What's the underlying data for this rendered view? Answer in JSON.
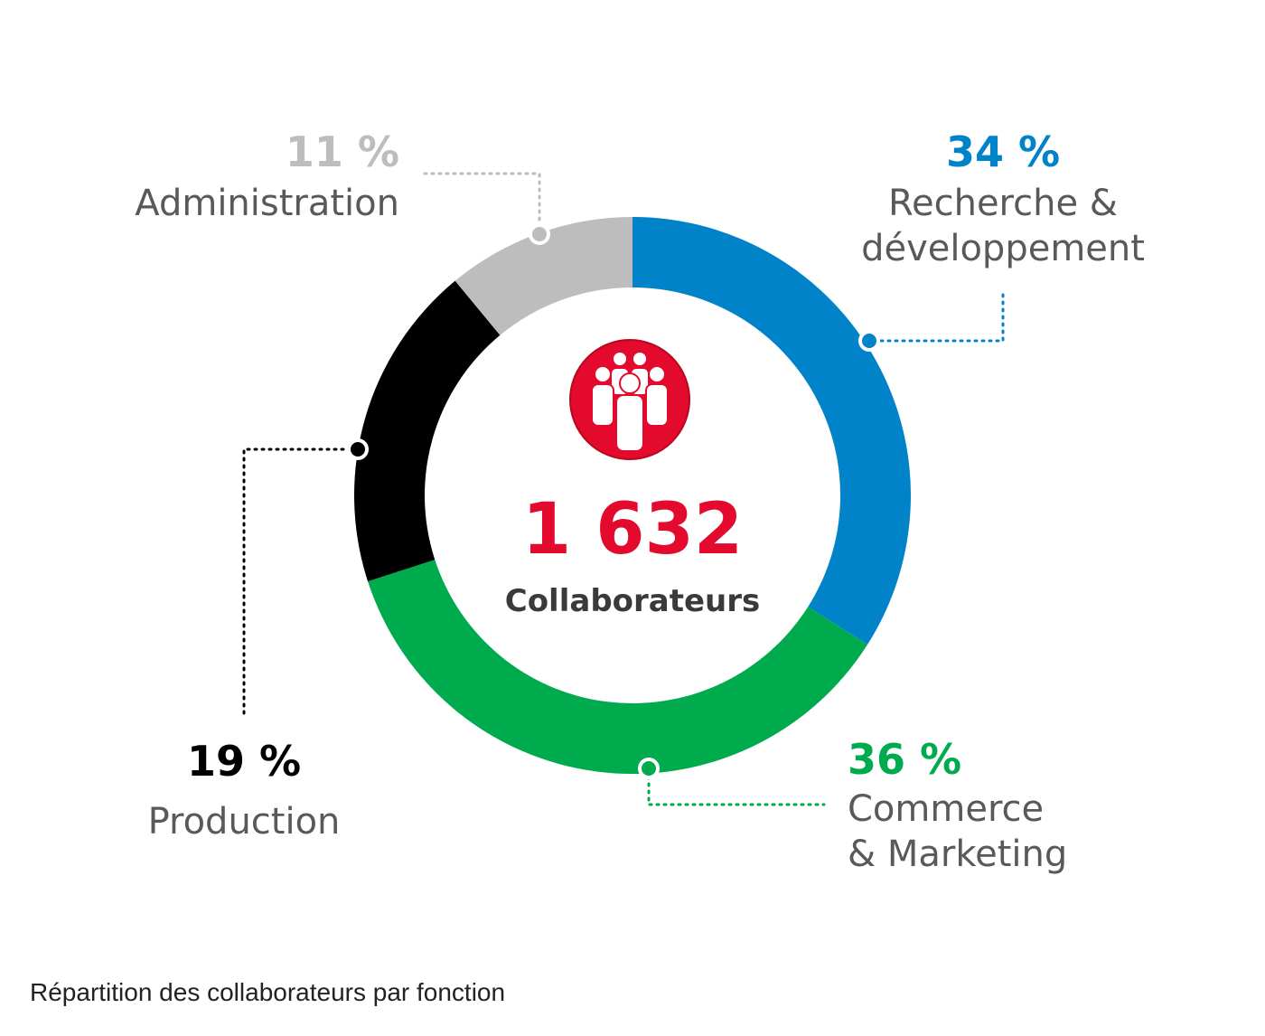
{
  "chart_data": {
    "type": "pie",
    "total": "1 632",
    "total_label": "Collaborateurs",
    "caption": "Répartition des collaborateurs par fonction",
    "slices": [
      {
        "key": "rd",
        "label_lines": [
          "Recherche &",
          "développement"
        ],
        "percent_label": "34 %",
        "value": 34,
        "color": "#0083c9"
      },
      {
        "key": "commerce",
        "label_lines": [
          "Commerce",
          "& Marketing"
        ],
        "percent_label": "36 %",
        "value": 36,
        "color": "#00ab4e"
      },
      {
        "key": "production",
        "label_lines": [
          "Production"
        ],
        "percent_label": "19 %",
        "value": 19,
        "color": "#000000"
      },
      {
        "key": "admin",
        "label_lines": [
          "Administration"
        ],
        "percent_label": "11 %",
        "value": 11,
        "color": "#bdbdbd"
      }
    ],
    "icon": "people-group-icon",
    "icon_color": "#e30a2e"
  }
}
